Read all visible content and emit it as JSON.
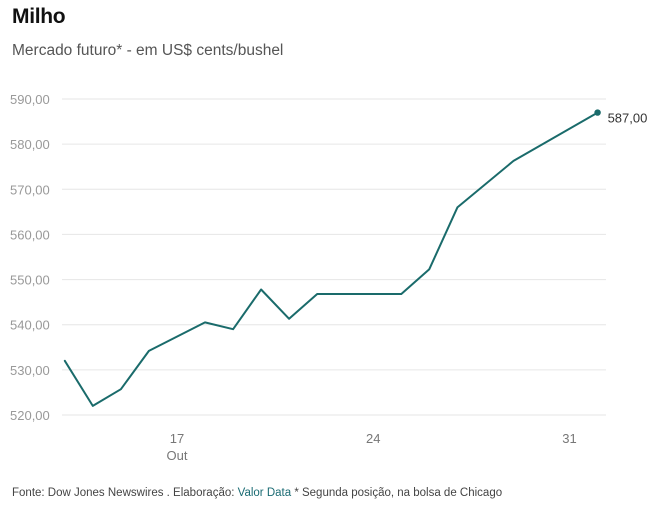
{
  "header": {
    "title": "Milho",
    "subtitle": "Mercado futuro* - em US$ cents/bushel"
  },
  "footer": {
    "source_prefix": "Fonte: Dow Jones Newswires . Elaboração: ",
    "source_link": "Valor Data",
    "source_suffix": " * Segunda posição, na bolsa de Chicago"
  },
  "colors": {
    "line": "#1a6b6b",
    "grid": "#e6e6e6",
    "link": "#1a6b73"
  },
  "chart_data": {
    "type": "line",
    "title": "Milho",
    "subtitle": "Mercado futuro* - em US$ cents/bushel",
    "xlabel": "",
    "ylabel": "US$ cents/bushel",
    "x_unit": "day of October",
    "xlim": [
      12.9,
      32.3
    ],
    "ylim": [
      518,
      592
    ],
    "grid": true,
    "y_ticks": [
      520,
      530,
      540,
      550,
      560,
      570,
      580,
      590
    ],
    "y_tick_labels": [
      "520,00",
      "530,00",
      "540,00",
      "550,00",
      "560,00",
      "570,00",
      "580,00",
      "590,00"
    ],
    "x_ticks": [
      17,
      24,
      31
    ],
    "x_tick_labels": [
      "17",
      "24",
      "31"
    ],
    "x_sublabel": {
      "under": 17,
      "text": "Out"
    },
    "series": [
      {
        "name": "Milho",
        "x": [
          13,
          14,
          15,
          16,
          18,
          19,
          20,
          21,
          22,
          25,
          26,
          27,
          29,
          32
        ],
        "values": [
          532,
          522,
          525.7,
          534.2,
          540.5,
          539,
          547.8,
          541.3,
          546.8,
          546.8,
          552.3,
          566,
          576.3,
          587
        ]
      }
    ],
    "end_label": {
      "value": 587,
      "text": "587,00"
    }
  }
}
